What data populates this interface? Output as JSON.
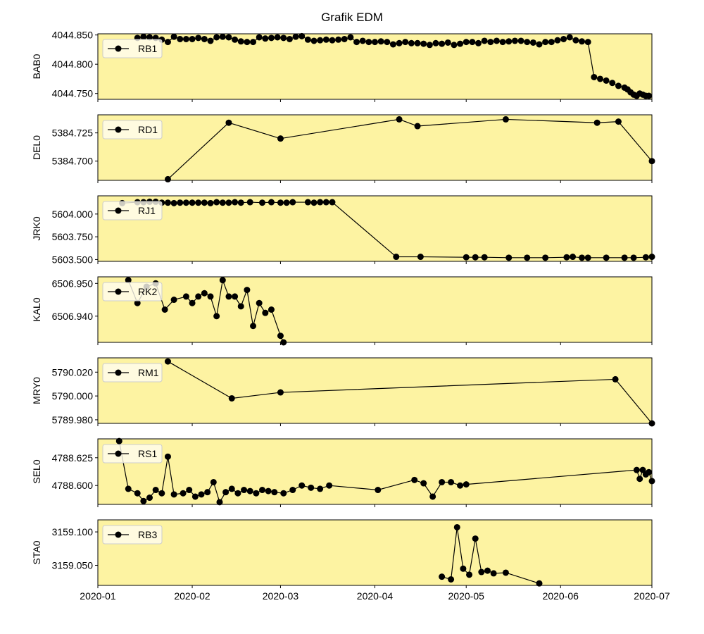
{
  "title": "Grafik EDM",
  "colors": {
    "face": "#fdf3a2",
    "line": "#000000",
    "marker": "#000000",
    "legend_bg": "#fffdf0"
  },
  "x_ticks": [
    "2020-01",
    "2020-02",
    "2020-03",
    "2020-04",
    "2020-05",
    "2020-06",
    "2020-07"
  ],
  "chart_data": [
    {
      "type": "line",
      "ylabel": "BAB0",
      "legend": "RB1",
      "legend_position": "top-left",
      "yticks": [
        "4044.750",
        "4044.800",
        "4044.850"
      ],
      "ylim": [
        4044.74,
        4044.852
      ],
      "x": [
        "2020-01-14",
        "2020-01-16",
        "2020-01-18",
        "2020-01-20",
        "2020-01-22",
        "2020-01-24",
        "2020-01-26",
        "2020-01-28",
        "2020-01-30",
        "2020-02-01",
        "2020-02-03",
        "2020-02-05",
        "2020-02-07",
        "2020-02-09",
        "2020-02-11",
        "2020-02-13",
        "2020-02-15",
        "2020-02-17",
        "2020-02-19",
        "2020-02-21",
        "2020-02-23",
        "2020-02-25",
        "2020-02-27",
        "2020-02-29",
        "2020-03-02",
        "2020-03-04",
        "2020-03-06",
        "2020-03-08",
        "2020-03-10",
        "2020-03-12",
        "2020-03-14",
        "2020-03-16",
        "2020-03-18",
        "2020-03-20",
        "2020-03-22",
        "2020-03-24",
        "2020-03-26",
        "2020-03-28",
        "2020-03-30",
        "2020-04-01",
        "2020-04-03",
        "2020-04-05",
        "2020-04-07",
        "2020-04-09",
        "2020-04-11",
        "2020-04-13",
        "2020-04-15",
        "2020-04-17",
        "2020-04-19",
        "2020-04-21",
        "2020-04-23",
        "2020-04-25",
        "2020-04-27",
        "2020-04-29",
        "2020-05-01",
        "2020-05-03",
        "2020-05-05",
        "2020-05-07",
        "2020-05-09",
        "2020-05-11",
        "2020-05-13",
        "2020-05-15",
        "2020-05-17",
        "2020-05-19",
        "2020-05-21",
        "2020-05-23",
        "2020-05-25",
        "2020-05-27",
        "2020-05-29",
        "2020-05-31",
        "2020-06-02",
        "2020-06-04",
        "2020-06-06",
        "2020-06-08",
        "2020-06-10",
        "2020-06-12",
        "2020-06-14",
        "2020-06-16",
        "2020-06-18",
        "2020-06-20",
        "2020-06-22",
        "2020-06-23",
        "2020-06-24",
        "2020-06-25",
        "2020-06-26",
        "2020-06-27",
        "2020-06-28",
        "2020-06-29",
        "2020-06-30"
      ],
      "values": [
        4044.845,
        4044.847,
        4044.846,
        4044.845,
        4044.842,
        4044.838,
        4044.847,
        4044.843,
        4044.843,
        4044.843,
        4044.845,
        4044.843,
        4044.84,
        4044.846,
        4044.847,
        4044.846,
        4044.842,
        4044.839,
        4044.838,
        4044.838,
        4044.846,
        4044.844,
        4044.845,
        4044.846,
        4044.845,
        4044.843,
        4044.847,
        4044.848,
        4044.842,
        4044.84,
        4044.841,
        4044.842,
        4044.841,
        4044.842,
        4044.843,
        4044.846,
        4044.838,
        4044.84,
        4044.838,
        4044.838,
        4044.839,
        4044.838,
        4044.834,
        4044.836,
        4044.838,
        4044.836,
        4044.836,
        4044.835,
        4044.833,
        4044.836,
        4044.835,
        4044.837,
        4044.833,
        4044.835,
        4044.838,
        4044.838,
        4044.836,
        4044.84,
        4044.838,
        4044.84,
        4044.838,
        4044.839,
        4044.84,
        4044.84,
        4044.838,
        4044.837,
        4044.834,
        4044.838,
        4044.838,
        4044.841,
        4044.843,
        4044.846,
        4044.841,
        4044.839,
        4044.838,
        4044.778,
        4044.775,
        4044.772,
        4044.768,
        4044.763,
        4044.76,
        4044.757,
        4044.752,
        4044.748,
        4044.746,
        4044.75,
        4044.748,
        4044.746,
        4044.746
      ]
    },
    {
      "type": "line",
      "ylabel": "DEL0",
      "legend": "RD1",
      "legend_position": "top-left",
      "yticks": [
        "5384.700",
        "5384.725"
      ],
      "ylim": [
        5384.683,
        5384.741
      ],
      "x": [
        "2020-01-24",
        "2020-02-13",
        "2020-03-01",
        "2020-04-09",
        "2020-04-15",
        "2020-05-14",
        "2020-06-13",
        "2020-06-20",
        "2020-07-01"
      ],
      "values": [
        5384.684,
        5384.734,
        5384.72,
        5384.737,
        5384.731,
        5384.737,
        5384.734,
        5384.735,
        5384.7
      ]
    },
    {
      "type": "line",
      "ylabel": "JRK0",
      "legend": "RJ1",
      "legend_position": "top-left",
      "yticks": [
        "5603.500",
        "5603.750",
        "5604.000"
      ],
      "ylim": [
        5603.48,
        5604.2
      ],
      "x": [
        "2020-01-09",
        "2020-01-14",
        "2020-01-16",
        "2020-01-18",
        "2020-01-20",
        "2020-01-22",
        "2020-01-24",
        "2020-01-26",
        "2020-01-28",
        "2020-01-30",
        "2020-02-01",
        "2020-02-03",
        "2020-02-05",
        "2020-02-07",
        "2020-02-09",
        "2020-02-11",
        "2020-02-13",
        "2020-02-15",
        "2020-02-17",
        "2020-02-20",
        "2020-02-24",
        "2020-02-27",
        "2020-03-01",
        "2020-03-03",
        "2020-03-05",
        "2020-03-10",
        "2020-03-12",
        "2020-03-14",
        "2020-03-16",
        "2020-03-18",
        "2020-04-08",
        "2020-04-16",
        "2020-05-01",
        "2020-05-04",
        "2020-05-07",
        "2020-05-15",
        "2020-05-21",
        "2020-05-27",
        "2020-06-03",
        "2020-06-05",
        "2020-06-08",
        "2020-06-10",
        "2020-06-16",
        "2020-06-22",
        "2020-06-25",
        "2020-06-29",
        "2020-07-01"
      ],
      "values": [
        5604.12,
        5604.13,
        5604.13,
        5604.135,
        5604.135,
        5604.125,
        5604.125,
        5604.12,
        5604.125,
        5604.125,
        5604.125,
        5604.125,
        5604.125,
        5604.12,
        5604.13,
        5604.125,
        5604.125,
        5604.13,
        5604.125,
        5604.13,
        5604.125,
        5604.13,
        5604.125,
        5604.125,
        5604.13,
        5604.13,
        5604.125,
        5604.13,
        5604.13,
        5604.13,
        5603.53,
        5603.53,
        5603.525,
        5603.525,
        5603.525,
        5603.52,
        5603.52,
        5603.52,
        5603.525,
        5603.53,
        5603.52,
        5603.52,
        5603.52,
        5603.52,
        5603.52,
        5603.525,
        5603.53
      ]
    },
    {
      "type": "line",
      "ylabel": "KAL0",
      "legend": "RK2",
      "legend_position": "top-left",
      "yticks": [
        "6506.940",
        "6506.950"
      ],
      "ylim": [
        6506.932,
        6506.952
      ],
      "x": [
        "2020-01-11",
        "2020-01-14",
        "2020-01-17",
        "2020-01-20",
        "2020-01-23",
        "2020-01-26",
        "2020-01-30",
        "2020-02-01",
        "2020-02-03",
        "2020-02-05",
        "2020-02-07",
        "2020-02-09",
        "2020-02-11",
        "2020-02-13",
        "2020-02-15",
        "2020-02-17",
        "2020-02-19",
        "2020-02-21",
        "2020-02-23",
        "2020-02-25",
        "2020-02-27",
        "2020-03-01",
        "2020-03-02"
      ],
      "values": [
        6506.951,
        6506.944,
        6506.949,
        6506.95,
        6506.942,
        6506.945,
        6506.946,
        6506.944,
        6506.946,
        6506.947,
        6506.946,
        6506.94,
        6506.951,
        6506.946,
        6506.946,
        6506.943,
        6506.948,
        6506.937,
        6506.944,
        6506.941,
        6506.942,
        6506.934,
        6506.932
      ]
    },
    {
      "type": "line",
      "ylabel": "MRY0",
      "legend": "RM1",
      "legend_position": "top-left",
      "yticks": [
        "5789.980",
        "5790.000",
        "5790.020"
      ],
      "ylim": [
        5789.977,
        5790.032
      ],
      "x": [
        "2020-01-24",
        "2020-02-14",
        "2020-03-01",
        "2020-06-19",
        "2020-07-01"
      ],
      "values": [
        5790.029,
        5789.998,
        5790.003,
        5790.014,
        5789.977
      ]
    },
    {
      "type": "line",
      "ylabel": "SEL0",
      "legend": "RS1",
      "legend_position": "top-left",
      "yticks": [
        "4788.600",
        "4788.625"
      ],
      "ylim": [
        4788.583,
        4788.642
      ],
      "x": [
        "2020-01-08",
        "2020-01-11",
        "2020-01-14",
        "2020-01-16",
        "2020-01-18",
        "2020-01-20",
        "2020-01-22",
        "2020-01-24",
        "2020-01-26",
        "2020-01-29",
        "2020-01-31",
        "2020-02-02",
        "2020-02-04",
        "2020-02-06",
        "2020-02-08",
        "2020-02-10",
        "2020-02-12",
        "2020-02-14",
        "2020-02-16",
        "2020-02-18",
        "2020-02-20",
        "2020-02-22",
        "2020-02-24",
        "2020-02-26",
        "2020-02-28",
        "2020-03-02",
        "2020-03-05",
        "2020-03-08",
        "2020-03-11",
        "2020-03-14",
        "2020-03-17",
        "2020-04-02",
        "2020-04-14",
        "2020-04-17",
        "2020-04-20",
        "2020-04-23",
        "2020-04-26",
        "2020-04-29",
        "2020-05-01",
        "2020-06-26",
        "2020-06-27",
        "2020-06-28",
        "2020-06-29",
        "2020-06-30",
        "2020-07-01"
      ],
      "values": [
        4788.64,
        4788.597,
        4788.593,
        4788.586,
        4788.589,
        4788.596,
        4788.593,
        4788.626,
        4788.592,
        4788.593,
        4788.596,
        4788.59,
        4788.592,
        4788.594,
        4788.603,
        4788.585,
        4788.594,
        4788.597,
        4788.593,
        4788.596,
        4788.595,
        4788.593,
        4788.596,
        4788.595,
        4788.594,
        4788.593,
        4788.596,
        4788.6,
        4788.598,
        4788.597,
        4788.6,
        4788.596,
        4788.605,
        4788.602,
        4788.59,
        4788.603,
        4788.603,
        4788.6,
        4788.601,
        4788.614,
        4788.606,
        4788.614,
        4788.61,
        4788.612,
        4788.604
      ]
    },
    {
      "type": "line",
      "ylabel": "STA0",
      "legend": "RB3",
      "legend_position": "top-left",
      "yticks": [
        "3159.050",
        "3159.100"
      ],
      "ylim": [
        3159.02,
        3159.118
      ],
      "x": [
        "2020-04-23",
        "2020-04-26",
        "2020-04-28",
        "2020-04-30",
        "2020-05-02",
        "2020-05-04",
        "2020-05-06",
        "2020-05-08",
        "2020-05-10",
        "2020-05-14",
        "2020-05-25"
      ],
      "values": [
        3159.033,
        3159.029,
        3159.107,
        3159.045,
        3159.036,
        3159.09,
        3159.04,
        3159.042,
        3159.038,
        3159.039,
        3159.023
      ]
    }
  ]
}
